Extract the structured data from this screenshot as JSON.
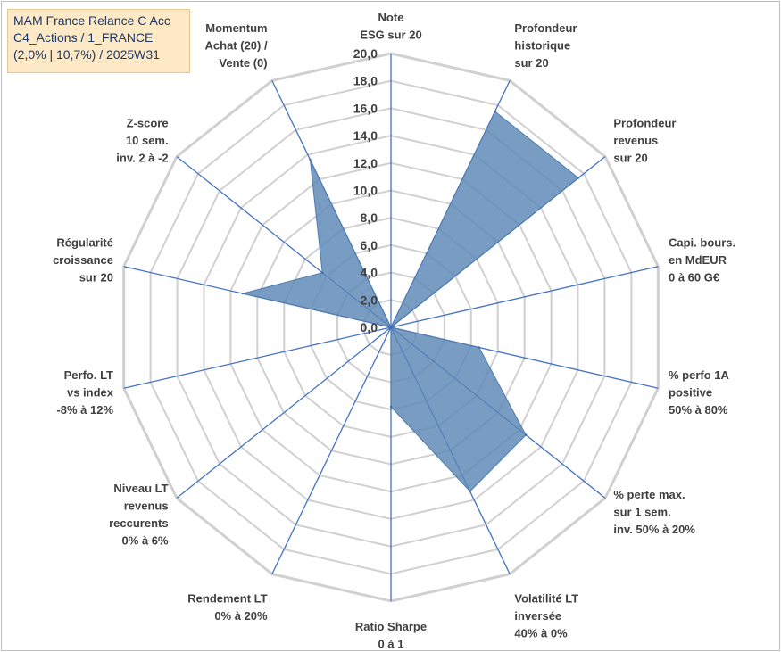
{
  "title_lines": [
    "MAM France Relance C Acc",
    "C4_Actions / 1_FRANCE",
    "(2,0% | 10,7%) / 2025W31"
  ],
  "chart_data": {
    "type": "radar",
    "rmin": 0,
    "rmax": 20,
    "tick_step": 2,
    "tick_labels": [
      "0,0",
      "2,0",
      "4,0",
      "6,0",
      "8,0",
      "10,0",
      "12,0",
      "14,0",
      "16,0",
      "18,0",
      "20,0"
    ],
    "categories": [
      [
        "Note",
        "ESG sur 20"
      ],
      [
        "Profondeur",
        "historique",
        "sur 20"
      ],
      [
        "Profondeur",
        "revenus",
        "sur 20"
      ],
      [
        "Capi. bours.",
        "en MdEUR",
        "0 à 60 G€"
      ],
      [
        "% perfo 1A",
        "positive",
        "50% à 80%"
      ],
      [
        "% perte max.",
        "sur 1 sem.",
        "inv. 50% à 20%"
      ],
      [
        "Volatilité LT",
        "inversée",
        "40% à 0%"
      ],
      [
        "Ratio Sharpe",
        "0 à 1"
      ],
      [
        "Rendement LT",
        "0% à 20%"
      ],
      [
        "Niveau LT",
        "revenus",
        "reccurents",
        "0% à 6%"
      ],
      [
        "Perfo. LT",
        "vs index",
        "-8% à 12%"
      ],
      [
        "Régularité",
        "croissance",
        "sur 20"
      ],
      [
        "Z-score",
        "10 sem.",
        "inv. 2 à -2"
      ],
      [
        "Momentum",
        "Achat (20) /",
        "Vente (0)"
      ]
    ],
    "values": [
      0,
      17.5,
      17.5,
      0,
      6.6,
      12.6,
      13.3,
      5.8,
      0,
      0,
      0,
      11.1,
      6.4,
      13.6
    ],
    "series_color": "#5b86b4",
    "grid": true,
    "legend": "none"
  }
}
